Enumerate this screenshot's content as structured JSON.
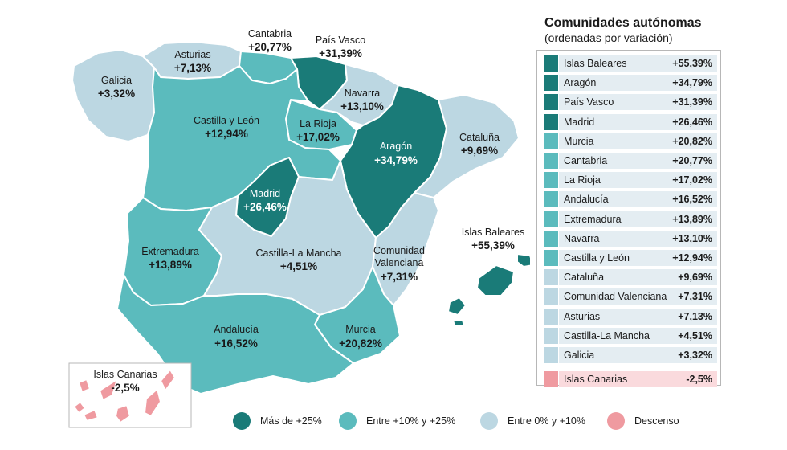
{
  "panel": {
    "title": "Comunidades autónomas",
    "subtitle": "(ordenadas por variación)"
  },
  "colors": {
    "dark": "#1a7b78",
    "mid": "#5bbbbd",
    "light": "#bcd7e2",
    "negative": "#ef9aa0",
    "row_band": "#e4edf2",
    "row_band_negative": "#fadadd"
  },
  "ranking": [
    {
      "name": "Islas Baleares",
      "value": "+55,39%",
      "cat": "dark"
    },
    {
      "name": "Aragón",
      "value": "+34,79%",
      "cat": "dark"
    },
    {
      "name": "País Vasco",
      "value": "+31,39%",
      "cat": "dark"
    },
    {
      "name": "Madrid",
      "value": "+26,46%",
      "cat": "dark"
    },
    {
      "name": "Murcia",
      "value": "+20,82%",
      "cat": "mid"
    },
    {
      "name": "Cantabria",
      "value": "+20,77%",
      "cat": "mid"
    },
    {
      "name": "La Rioja",
      "value": "+17,02%",
      "cat": "mid"
    },
    {
      "name": "Andalucía",
      "value": "+16,52%",
      "cat": "mid"
    },
    {
      "name": "Extremadura",
      "value": "+13,89%",
      "cat": "mid"
    },
    {
      "name": "Navarra",
      "value": "+13,10%",
      "cat": "mid"
    },
    {
      "name": "Castilla y León",
      "value": "+12,94%",
      "cat": "mid"
    },
    {
      "name": "Cataluña",
      "value": "+9,69%",
      "cat": "light"
    },
    {
      "name": "Comunidad Valenciana",
      "value": "+7,31%",
      "cat": "light"
    },
    {
      "name": "Asturias",
      "value": "+7,13%",
      "cat": "light"
    },
    {
      "name": "Castilla-La Mancha",
      "value": "+4,51%",
      "cat": "light"
    },
    {
      "name": "Galicia",
      "value": "+3,32%",
      "cat": "light"
    },
    {
      "name": "Islas Canarias",
      "value": "-2,5%",
      "cat": "negative"
    }
  ],
  "map_labels": {
    "galicia": {
      "name": "Galicia",
      "value": "+3,32%"
    },
    "asturias": {
      "name": "Asturias",
      "value": "+7,13%"
    },
    "cantabria": {
      "name": "Cantabria",
      "value": "+20,77%"
    },
    "pais_vasco": {
      "name": "País Vasco",
      "value": "+31,39%"
    },
    "navarra": {
      "name": "Navarra",
      "value": "+13,10%"
    },
    "la_rioja": {
      "name": "La Rioja",
      "value": "+17,02%"
    },
    "castilla_leon": {
      "name": "Castilla y León",
      "value": "+12,94%"
    },
    "aragon": {
      "name": "Aragón",
      "value": "+34,79%"
    },
    "cataluna": {
      "name": "Cataluña",
      "value": "+9,69%"
    },
    "madrid": {
      "name": "Madrid",
      "value": "+26,46%"
    },
    "extremadura": {
      "name": "Extremadura",
      "value": "+13,89%"
    },
    "castilla_mancha": {
      "name": "Castilla-La Mancha",
      "value": "+4,51%"
    },
    "valenciana": {
      "name1": "Comunidad",
      "name2": "Valenciana",
      "value": "+7,31%"
    },
    "baleares": {
      "name": "Islas Baleares",
      "value": "+55,39%"
    },
    "andalucia": {
      "name": "Andalucía",
      "value": "+16,52%"
    },
    "murcia": {
      "name": "Murcia",
      "value": "+20,82%"
    },
    "canarias": {
      "name": "Islas Canarias",
      "value": "-2,5%"
    }
  },
  "legend": [
    {
      "label": "Más de +25%",
      "cat": "dark"
    },
    {
      "label": "Entre +10% y +25%",
      "cat": "mid"
    },
    {
      "label": "Entre 0% y +10%",
      "cat": "light"
    },
    {
      "label": "Descenso",
      "cat": "negative"
    }
  ]
}
